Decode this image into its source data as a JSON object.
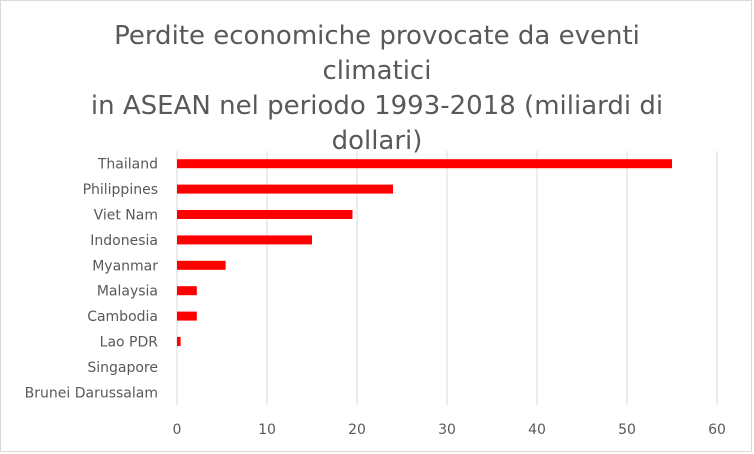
{
  "chart_data": {
    "type": "bar",
    "orientation": "horizontal",
    "title_lines": [
      "Perdite economiche  provocate da eventi climatici",
      "in ASEAN nel periodo 1993-2018 (miliardi di",
      "dollari)"
    ],
    "categories": [
      "Thailand",
      "Philippines",
      "Viet Nam",
      "Indonesia",
      "Myanmar",
      "Malaysia",
      "Cambodia",
      "Lao PDR",
      "Singapore",
      "Brunei Darussalam"
    ],
    "values": [
      55,
      24,
      19.5,
      15,
      5.4,
      2.2,
      2.2,
      0.4,
      0,
      0
    ],
    "xlim": [
      0,
      60
    ],
    "xticks": [
      "0",
      "10",
      "20",
      "30",
      "40",
      "50",
      "60"
    ],
    "grid": "vertical",
    "bar_color": "#ff0000",
    "grid_color": "#d9d9d9",
    "text_color": "#595959"
  }
}
